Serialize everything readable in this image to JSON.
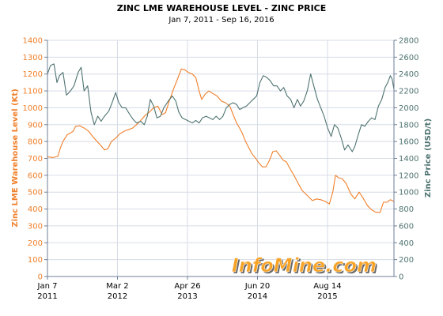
{
  "chart_data": {
    "type": "line",
    "title": "ZINC LME WAREHOUSE LEVEL - ZINC PRICE",
    "subtitle": "Jan 7, 2011 - Sep 16, 2016",
    "ylabel_left": "Zinc LME Warehouse Level (Kt)",
    "ylabel_right": "Zinc Price (USD/t)",
    "watermark": "InfoMine.com",
    "ylim_left": [
      0,
      1400
    ],
    "ylim_right": [
      0,
      2800
    ],
    "yticks_left": [
      "0",
      "100",
      "200",
      "300",
      "400",
      "500",
      "600",
      "700",
      "800",
      "900",
      "1000",
      "1100",
      "1200",
      "1300",
      "1400"
    ],
    "yticks_right": [
      "0",
      "200",
      "400",
      "600",
      "800",
      "1000",
      "1200",
      "1400",
      "1600",
      "1800",
      "2000",
      "2200",
      "2400",
      "2600",
      "2800"
    ],
    "xticks": [
      {
        "date": "2011-01-07",
        "label": "Jan 7",
        "year": "2011"
      },
      {
        "date": "2012-03-02",
        "label": "Mar 2",
        "year": "2012"
      },
      {
        "date": "2013-04-26",
        "label": "Apr 26",
        "year": "2013"
      },
      {
        "date": "2014-06-20",
        "label": "Jun 20",
        "year": "2014"
      },
      {
        "date": "2015-08-14",
        "label": "Aug 14",
        "year": "2015"
      }
    ],
    "xlim": [
      "2011-01-07",
      "2016-09-16"
    ],
    "grid": true,
    "colors": {
      "warehouse": "#F07F2A",
      "price": "#4E7370",
      "grid": "#D6DCE6",
      "axis": "#6E7F96"
    },
    "series": [
      {
        "name": "Zinc LME Warehouse Level (Kt)",
        "axis": "left",
        "points": [
          [
            "2011-01-07",
            710
          ],
          [
            "2011-02-10",
            705
          ],
          [
            "2011-03-10",
            712
          ],
          [
            "2011-03-25",
            760
          ],
          [
            "2011-04-10",
            800
          ],
          [
            "2011-05-05",
            840
          ],
          [
            "2011-06-10",
            860
          ],
          [
            "2011-06-25",
            890
          ],
          [
            "2011-07-20",
            893
          ],
          [
            "2011-08-15",
            880
          ],
          [
            "2011-09-10",
            862
          ],
          [
            "2011-10-05",
            830
          ],
          [
            "2011-11-01",
            800
          ],
          [
            "2011-11-25",
            775
          ],
          [
            "2011-12-15",
            750
          ],
          [
            "2012-01-05",
            758
          ],
          [
            "2012-01-25",
            800
          ],
          [
            "2012-02-20",
            820
          ],
          [
            "2012-03-15",
            845
          ],
          [
            "2012-04-10",
            860
          ],
          [
            "2012-05-05",
            870
          ],
          [
            "2012-06-01",
            880
          ],
          [
            "2012-06-25",
            900
          ],
          [
            "2012-07-20",
            925
          ],
          [
            "2012-08-15",
            955
          ],
          [
            "2012-09-10",
            975
          ],
          [
            "2012-10-05",
            1000
          ],
          [
            "2012-10-30",
            1010
          ],
          [
            "2012-11-25",
            960
          ],
          [
            "2012-12-15",
            970
          ],
          [
            "2013-01-10",
            1050
          ],
          [
            "2013-02-05",
            1120
          ],
          [
            "2013-03-01",
            1180
          ],
          [
            "2013-03-20",
            1230
          ],
          [
            "2013-04-10",
            1225
          ],
          [
            "2013-05-01",
            1210
          ],
          [
            "2013-05-25",
            1200
          ],
          [
            "2013-06-15",
            1180
          ],
          [
            "2013-07-05",
            1100
          ],
          [
            "2013-07-20",
            1050
          ],
          [
            "2013-08-10",
            1080
          ],
          [
            "2013-09-01",
            1100
          ],
          [
            "2013-09-25",
            1085
          ],
          [
            "2013-10-20",
            1070
          ],
          [
            "2013-11-15",
            1040
          ],
          [
            "2013-12-10",
            1030
          ],
          [
            "2014-01-05",
            1010
          ],
          [
            "2014-01-25",
            960
          ],
          [
            "2014-02-15",
            910
          ],
          [
            "2014-03-05",
            880
          ],
          [
            "2014-03-20",
            850
          ],
          [
            "2014-04-10",
            800
          ],
          [
            "2014-05-01",
            760
          ],
          [
            "2014-05-20",
            725
          ],
          [
            "2014-06-10",
            700
          ],
          [
            "2014-06-30",
            670
          ],
          [
            "2014-07-20",
            650
          ],
          [
            "2014-08-10",
            650
          ],
          [
            "2014-09-01",
            690
          ],
          [
            "2014-09-20",
            740
          ],
          [
            "2014-10-10",
            745
          ],
          [
            "2014-10-30",
            720
          ],
          [
            "2014-11-20",
            690
          ],
          [
            "2014-12-10",
            680
          ],
          [
            "2015-01-01",
            640
          ],
          [
            "2015-01-25",
            600
          ],
          [
            "2015-02-20",
            550
          ],
          [
            "2015-03-15",
            510
          ],
          [
            "2015-04-05",
            490
          ],
          [
            "2015-04-25",
            470
          ],
          [
            "2015-05-15",
            450
          ],
          [
            "2015-06-10",
            460
          ],
          [
            "2015-07-05",
            455
          ],
          [
            "2015-08-01",
            445
          ],
          [
            "2015-08-25",
            430
          ],
          [
            "2015-09-15",
            500
          ],
          [
            "2015-10-01",
            600
          ],
          [
            "2015-10-20",
            585
          ],
          [
            "2015-11-10",
            580
          ],
          [
            "2015-12-05",
            550
          ],
          [
            "2016-01-01",
            490
          ],
          [
            "2016-01-25",
            460
          ],
          [
            "2016-02-20",
            500
          ],
          [
            "2016-03-15",
            465
          ],
          [
            "2016-04-10",
            420
          ],
          [
            "2016-05-05",
            395
          ],
          [
            "2016-06-01",
            380
          ],
          [
            "2016-06-25",
            380
          ],
          [
            "2016-07-15",
            440
          ],
          [
            "2016-08-05",
            440
          ],
          [
            "2016-08-25",
            455
          ],
          [
            "2016-09-16",
            445
          ]
        ]
      },
      {
        "name": "Zinc Price (USD/t)",
        "axis": "right",
        "points": [
          [
            "2011-01-07",
            2400
          ],
          [
            "2011-01-25",
            2500
          ],
          [
            "2011-02-15",
            2520
          ],
          [
            "2011-03-05",
            2300
          ],
          [
            "2011-03-20",
            2380
          ],
          [
            "2011-04-10",
            2420
          ],
          [
            "2011-05-01",
            2150
          ],
          [
            "2011-05-25",
            2200
          ],
          [
            "2011-06-15",
            2260
          ],
          [
            "2011-07-10",
            2420
          ],
          [
            "2011-07-28",
            2480
          ],
          [
            "2011-08-15",
            2200
          ],
          [
            "2011-09-05",
            2260
          ],
          [
            "2011-09-25",
            1950
          ],
          [
            "2011-10-15",
            1800
          ],
          [
            "2011-11-05",
            1900
          ],
          [
            "2011-11-25",
            1840
          ],
          [
            "2011-12-15",
            1900
          ],
          [
            "2012-01-10",
            1960
          ],
          [
            "2012-01-30",
            2060
          ],
          [
            "2012-02-20",
            2180
          ],
          [
            "2012-03-10",
            2060
          ],
          [
            "2012-03-30",
            2000
          ],
          [
            "2012-04-20",
            2000
          ],
          [
            "2012-05-15",
            1920
          ],
          [
            "2012-06-05",
            1860
          ],
          [
            "2012-06-25",
            1820
          ],
          [
            "2012-07-20",
            1840
          ],
          [
            "2012-08-10",
            1800
          ],
          [
            "2012-08-28",
            1900
          ],
          [
            "2012-09-15",
            2100
          ],
          [
            "2012-10-05",
            2020
          ],
          [
            "2012-10-25",
            1880
          ],
          [
            "2012-11-15",
            1900
          ],
          [
            "2012-12-05",
            2000
          ],
          [
            "2013-01-01",
            2080
          ],
          [
            "2013-01-25",
            2140
          ],
          [
            "2013-02-15",
            2080
          ],
          [
            "2013-03-05",
            1950
          ],
          [
            "2013-03-25",
            1880
          ],
          [
            "2013-04-15",
            1860
          ],
          [
            "2013-05-05",
            1840
          ],
          [
            "2013-05-25",
            1820
          ],
          [
            "2013-06-15",
            1850
          ],
          [
            "2013-07-05",
            1820
          ],
          [
            "2013-07-25",
            1880
          ],
          [
            "2013-08-15",
            1900
          ],
          [
            "2013-09-05",
            1880
          ],
          [
            "2013-09-25",
            1860
          ],
          [
            "2013-10-15",
            1900
          ],
          [
            "2013-11-05",
            1860
          ],
          [
            "2013-11-25",
            1900
          ],
          [
            "2013-12-15",
            2000
          ],
          [
            "2014-01-05",
            2040
          ],
          [
            "2014-01-25",
            2060
          ],
          [
            "2014-02-15",
            2040
          ],
          [
            "2014-03-05",
            1980
          ],
          [
            "2014-03-25",
            2000
          ],
          [
            "2014-04-15",
            2020
          ],
          [
            "2014-05-05",
            2060
          ],
          [
            "2014-05-25",
            2100
          ],
          [
            "2014-06-15",
            2140
          ],
          [
            "2014-07-05",
            2300
          ],
          [
            "2014-07-25",
            2380
          ],
          [
            "2014-08-15",
            2360
          ],
          [
            "2014-09-05",
            2320
          ],
          [
            "2014-09-25",
            2260
          ],
          [
            "2014-10-15",
            2260
          ],
          [
            "2014-11-05",
            2200
          ],
          [
            "2014-11-25",
            2240
          ],
          [
            "2014-12-15",
            2140
          ],
          [
            "2015-01-05",
            2100
          ],
          [
            "2015-01-25",
            2000
          ],
          [
            "2015-02-15",
            2100
          ],
          [
            "2015-03-05",
            2020
          ],
          [
            "2015-03-25",
            2080
          ],
          [
            "2015-04-15",
            2200
          ],
          [
            "2015-05-05",
            2400
          ],
          [
            "2015-05-25",
            2250
          ],
          [
            "2015-06-15",
            2100
          ],
          [
            "2015-07-05",
            2000
          ],
          [
            "2015-07-25",
            1900
          ],
          [
            "2015-08-15",
            1760
          ],
          [
            "2015-09-05",
            1660
          ],
          [
            "2015-09-25",
            1800
          ],
          [
            "2015-10-15",
            1760
          ],
          [
            "2015-11-05",
            1640
          ],
          [
            "2015-11-25",
            1500
          ],
          [
            "2015-12-15",
            1560
          ],
          [
            "2016-01-10",
            1480
          ],
          [
            "2016-01-25",
            1540
          ],
          [
            "2016-02-15",
            1680
          ],
          [
            "2016-03-05",
            1800
          ],
          [
            "2016-03-25",
            1780
          ],
          [
            "2016-04-15",
            1840
          ],
          [
            "2016-05-05",
            1880
          ],
          [
            "2016-05-25",
            1860
          ],
          [
            "2016-06-15",
            2020
          ],
          [
            "2016-07-05",
            2100
          ],
          [
            "2016-07-25",
            2240
          ],
          [
            "2016-08-10",
            2300
          ],
          [
            "2016-08-25",
            2380
          ],
          [
            "2016-09-05",
            2340
          ],
          [
            "2016-09-16",
            2220
          ]
        ]
      }
    ]
  }
}
